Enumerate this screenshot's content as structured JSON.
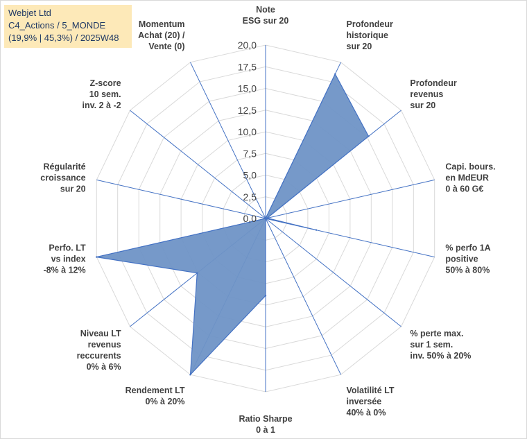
{
  "title_box": {
    "line1": "Webjet Ltd",
    "line2": "C4_Actions / 5_MONDE",
    "line3": "(19,9% | 45,3%) / 2025W48"
  },
  "chart_data": {
    "type": "radar",
    "title": "Webjet Ltd C4_Actions / 5_MONDE (19,9% | 45,3%) / 2025W48",
    "r_range": [
      0,
      20
    ],
    "tick_step": 2.5,
    "tick_labels": [
      "0,0",
      "2,5",
      "5,0",
      "7,5",
      "10,0",
      "12,5",
      "15,0",
      "17,5",
      "20,0"
    ],
    "grid": true,
    "fill_color": "#6f93c6",
    "line_color": "#4472c4",
    "grid_color": "#d9d9d9",
    "axes": [
      {
        "label": [
          "Note",
          "ESG sur 20"
        ],
        "value": 0
      },
      {
        "label": [
          "Profondeur",
          "historique",
          "sur 20"
        ],
        "value": 18.5
      },
      {
        "label": [
          "Profondeur",
          "revenus",
          "sur 20"
        ],
        "value": 15.2
      },
      {
        "label": [
          "Capi. bours.",
          "en MdEUR",
          "0 à 60 G€"
        ],
        "value": 0.2
      },
      {
        "label": [
          "% perfo 1A",
          "positive",
          "50% à 80%"
        ],
        "value": 6.0
      },
      {
        "label": [
          "% perte max.",
          "sur 1 sem.",
          "inv. 50% à 20%"
        ],
        "value": 0
      },
      {
        "label": [
          "Volatilité LT",
          "inversée",
          "40% à 0%"
        ],
        "value": 0
      },
      {
        "label": [
          "Ratio Sharpe",
          "0 à 1"
        ],
        "value": 8.9
      },
      {
        "label": [
          "Rendement LT",
          "0% à 20%"
        ],
        "value": 20.0
      },
      {
        "label": [
          "Niveau LT",
          "revenus",
          "reccurents",
          "0% à 6%"
        ],
        "value": 10.1
      },
      {
        "label": [
          "Perfo. LT",
          "vs index",
          "-8% à 12%"
        ],
        "value": 20.0
      },
      {
        "label": [
          "Régularité",
          "croissance",
          "sur 20"
        ],
        "value": 0
      },
      {
        "label": [
          "Z-score",
          "10 sem.",
          "inv. 2 à -2"
        ],
        "value": 0
      },
      {
        "label": [
          "Momentum",
          "Achat (20) /",
          "Vente (0)"
        ],
        "value": 0
      }
    ]
  }
}
